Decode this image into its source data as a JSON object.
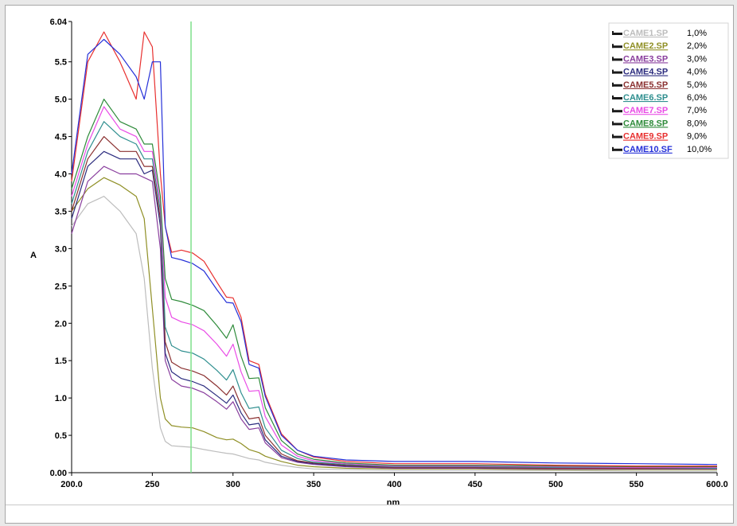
{
  "chart_data": {
    "type": "line",
    "xlabel": "nm",
    "ylabel": "A",
    "xlim": [
      200,
      600
    ],
    "ylim": [
      0,
      6.04
    ],
    "x_ticks": [
      "200.0",
      "250",
      "300",
      "350",
      "400",
      "450",
      "500",
      "550",
      "600.0"
    ],
    "y_ticks": [
      "0.00",
      "0.5",
      "1.0",
      "1.5",
      "2.0",
      "2.5",
      "3.0",
      "3.5",
      "4.0",
      "4.5",
      "5.0",
      "5.5",
      "6.04"
    ],
    "cursor_x": 274,
    "cursor_color": "#7fe08a",
    "legend_position": "top-right",
    "grid": false,
    "x": [
      200,
      210,
      220,
      230,
      240,
      245,
      250,
      255,
      258,
      262,
      268,
      275,
      282,
      290,
      296,
      300,
      305,
      310,
      316,
      320,
      330,
      340,
      350,
      370,
      400,
      450,
      500,
      550,
      600
    ],
    "series": [
      {
        "name": "CAME1.SP",
        "value": "1,0%",
        "color": "#bdbdbd",
        "values": [
          3.3,
          3.6,
          3.7,
          3.5,
          3.2,
          2.6,
          1.4,
          0.6,
          0.42,
          0.36,
          0.35,
          0.34,
          0.31,
          0.28,
          0.26,
          0.25,
          0.22,
          0.19,
          0.17,
          0.14,
          0.1,
          0.07,
          0.05,
          0.04,
          0.03,
          0.03,
          0.03,
          0.02,
          0.02
        ]
      },
      {
        "name": "CAME2.SP",
        "value": "2,0%",
        "color": "#8f8f25",
        "values": [
          3.5,
          3.8,
          3.95,
          3.85,
          3.7,
          3.4,
          2.2,
          1.0,
          0.72,
          0.63,
          0.61,
          0.6,
          0.55,
          0.47,
          0.44,
          0.45,
          0.39,
          0.31,
          0.27,
          0.22,
          0.15,
          0.1,
          0.08,
          0.06,
          0.05,
          0.05,
          0.04,
          0.04,
          0.04
        ]
      },
      {
        "name": "CAME3.SP",
        "value": "3,0%",
        "color": "#8a3f9e",
        "values": [
          3.2,
          3.9,
          4.1,
          4.0,
          4.0,
          3.95,
          3.9,
          3.0,
          1.5,
          1.25,
          1.16,
          1.13,
          1.07,
          0.95,
          0.85,
          0.95,
          0.72,
          0.58,
          0.6,
          0.4,
          0.2,
          0.14,
          0.11,
          0.08,
          0.06,
          0.06,
          0.05,
          0.05,
          0.05
        ]
      },
      {
        "name": "CAME4.SP",
        "value": "4,0%",
        "color": "#2b2b7e",
        "values": [
          3.4,
          4.1,
          4.3,
          4.2,
          4.2,
          4.0,
          4.05,
          3.3,
          1.6,
          1.35,
          1.26,
          1.22,
          1.16,
          1.03,
          0.93,
          1.04,
          0.8,
          0.64,
          0.66,
          0.44,
          0.22,
          0.15,
          0.12,
          0.09,
          0.07,
          0.07,
          0.06,
          0.06,
          0.06
        ]
      },
      {
        "name": "CAME5.SP",
        "value": "5,0%",
        "color": "#8b3131",
        "values": [
          3.5,
          4.2,
          4.5,
          4.3,
          4.3,
          4.1,
          4.1,
          3.4,
          1.75,
          1.48,
          1.4,
          1.36,
          1.3,
          1.16,
          1.04,
          1.16,
          0.9,
          0.72,
          0.74,
          0.5,
          0.25,
          0.16,
          0.13,
          0.1,
          0.07,
          0.07,
          0.06,
          0.06,
          0.06
        ]
      },
      {
        "name": "CAME6.SP",
        "value": "6,0%",
        "color": "#2f8f8f",
        "values": [
          3.6,
          4.3,
          4.7,
          4.5,
          4.4,
          4.2,
          4.2,
          3.5,
          1.95,
          1.7,
          1.63,
          1.6,
          1.52,
          1.37,
          1.24,
          1.38,
          1.07,
          0.86,
          0.88,
          0.6,
          0.3,
          0.19,
          0.14,
          0.11,
          0.08,
          0.08,
          0.07,
          0.07,
          0.06
        ]
      },
      {
        "name": "CAME7.SP",
        "value": "7,0%",
        "color": "#e94be6",
        "values": [
          3.7,
          4.4,
          4.9,
          4.6,
          4.5,
          4.3,
          4.3,
          3.6,
          2.35,
          2.08,
          2.02,
          1.98,
          1.9,
          1.72,
          1.56,
          1.72,
          1.35,
          1.09,
          1.1,
          0.75,
          0.37,
          0.22,
          0.16,
          0.12,
          0.09,
          0.09,
          0.08,
          0.07,
          0.07
        ]
      },
      {
        "name": "CAME8.SP",
        "value": "8,0%",
        "color": "#2e8b3a",
        "values": [
          3.8,
          4.5,
          5.0,
          4.7,
          4.6,
          4.4,
          4.4,
          3.7,
          2.6,
          2.32,
          2.29,
          2.24,
          2.17,
          1.97,
          1.8,
          1.98,
          1.56,
          1.26,
          1.27,
          0.87,
          0.43,
          0.25,
          0.18,
          0.13,
          0.1,
          0.1,
          0.09,
          0.08,
          0.08
        ]
      },
      {
        "name": "CAME9.SP",
        "value": "9,0%",
        "color": "#e8302f",
        "values": [
          3.9,
          5.5,
          5.9,
          5.5,
          5.0,
          5.9,
          5.7,
          4.0,
          3.3,
          2.95,
          2.98,
          2.94,
          2.83,
          2.55,
          2.35,
          2.34,
          2.08,
          1.5,
          1.45,
          1.05,
          0.52,
          0.3,
          0.21,
          0.15,
          0.12,
          0.12,
          0.1,
          0.09,
          0.09
        ]
      },
      {
        "name": "CAME10.SF",
        "value": "10,0%",
        "color": "#2530d8",
        "values": [
          4.0,
          5.6,
          5.8,
          5.6,
          5.3,
          5.0,
          5.5,
          5.5,
          3.3,
          2.88,
          2.85,
          2.8,
          2.7,
          2.45,
          2.28,
          2.27,
          2.02,
          1.45,
          1.4,
          1.02,
          0.5,
          0.3,
          0.22,
          0.17,
          0.15,
          0.15,
          0.13,
          0.12,
          0.11
        ]
      }
    ]
  }
}
